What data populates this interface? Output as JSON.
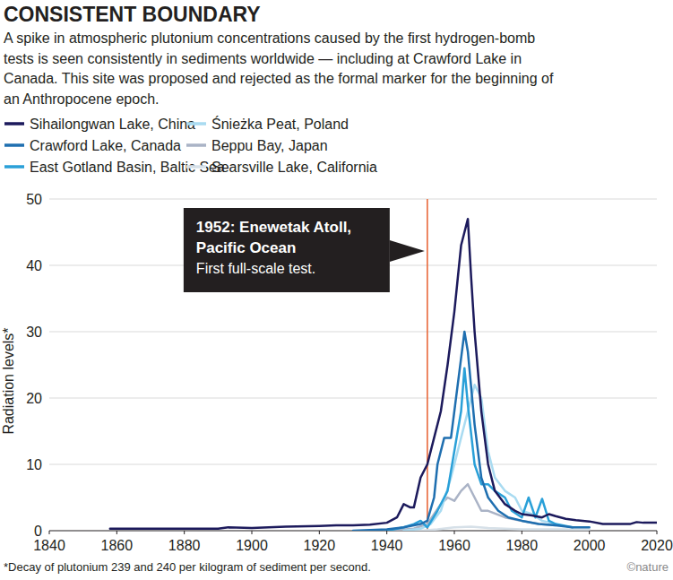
{
  "chart_data": {
    "type": "line",
    "title": "CONSISTENT BOUNDARY",
    "subtitle": [
      "A spike in atmospheric plutonium concentrations caused by the first hydrogen-bomb",
      "tests is seen consistently in sediments worldwide — including at Crawford Lake in",
      "Canada. This site was proposed and rejected as the formal marker for the beginning of",
      "an Anthropocene epoch."
    ],
    "ylabel": "Radiation levels*",
    "footnote": "*Decay of plutonium 239 and 240 per kilogram of sediment per second.",
    "credit": "©nature",
    "xlim": [
      1840,
      2020
    ],
    "ylim": [
      0,
      50
    ],
    "xticks": [
      1840,
      1860,
      1880,
      1900,
      1920,
      1940,
      1960,
      1980,
      2000,
      2020
    ],
    "yticks": [
      0,
      10,
      20,
      30,
      40,
      50
    ],
    "grid": true,
    "legend": "top",
    "annotations": [
      {
        "x": 1952,
        "lines": [
          "1952: Enewetak Atoll,",
          "Pacific Ocean"
        ],
        "text": "First full-scale test.",
        "color": "#e8683a"
      }
    ],
    "series": [
      {
        "name": "Sihailongwan Lake, China",
        "color": "#1c1a5c",
        "x": [
          1858,
          1870,
          1880,
          1890,
          1893,
          1900,
          1910,
          1920,
          1925,
          1930,
          1935,
          1940,
          1943,
          1945,
          1947,
          1948,
          1950,
          1952,
          1954,
          1956,
          1958,
          1960,
          1962,
          1963,
          1964,
          1965,
          1966,
          1968,
          1970,
          1972,
          1975,
          1978,
          1980,
          1983,
          1986,
          1988,
          1990,
          1993,
          1996,
          2000,
          2004,
          2008,
          2012,
          2014,
          2016,
          2020
        ],
        "values": [
          0.3,
          0.3,
          0.3,
          0.3,
          0.5,
          0.4,
          0.6,
          0.7,
          0.8,
          0.8,
          0.9,
          1.2,
          2,
          4,
          3.5,
          3.5,
          8,
          10,
          14,
          18,
          25,
          33,
          43,
          45,
          47,
          38,
          30,
          18,
          10,
          6,
          4,
          3,
          2.5,
          2.3,
          2,
          2.5,
          2.2,
          1.8,
          1.6,
          1.4,
          1,
          1,
          1,
          1.3,
          1.2,
          1.2
        ]
      },
      {
        "name": "Crawford Lake, Canada",
        "color": "#1f6fb0",
        "x": [
          1930,
          1940,
          1945,
          1948,
          1950,
          1952,
          1954,
          1955,
          1957,
          1959,
          1961,
          1963,
          1964,
          1966,
          1968,
          1970,
          1973,
          1976,
          1980,
          1985,
          1990,
          1995,
          2000
        ],
        "values": [
          0,
          0.2,
          0.5,
          0.8,
          1,
          1.5,
          5,
          10,
          14,
          14,
          22,
          30,
          27,
          16,
          8,
          5,
          3,
          2,
          1.5,
          1,
          0.8,
          0.5,
          0.5
        ]
      },
      {
        "name": "East Gotland Basin, Baltic Sea",
        "color": "#2aa0d8",
        "x": [
          1940,
          1945,
          1948,
          1950,
          1952,
          1955,
          1958,
          1960,
          1962,
          1963,
          1964,
          1966,
          1968,
          1970,
          1972,
          1975,
          1977,
          1980,
          1982,
          1984,
          1986,
          1988,
          1990,
          1995
        ],
        "values": [
          0,
          0.5,
          1,
          1.5,
          0.5,
          3,
          6,
          12,
          18,
          24.5,
          19,
          10,
          7,
          7,
          6,
          5,
          3,
          2,
          5,
          2,
          4.8,
          1.5,
          1,
          0.5
        ]
      },
      {
        "name": "Śnieżka Peat, Poland",
        "color": "#a9dbf1",
        "x": [
          1945,
          1950,
          1953,
          1956,
          1959,
          1962,
          1964,
          1966,
          1968,
          1970,
          1972,
          1975,
          1978,
          1980,
          1983,
          1986,
          1990
        ],
        "values": [
          0,
          0.3,
          1,
          3,
          8,
          14,
          18,
          22,
          20,
          12,
          8,
          6,
          5,
          3,
          2.5,
          1.5,
          1
        ]
      },
      {
        "name": "Beppu Bay, Japan",
        "color": "#aab3c6",
        "x": [
          1940,
          1948,
          1952,
          1954,
          1956,
          1958,
          1960,
          1962,
          1964,
          1966,
          1968,
          1970,
          1975,
          1980,
          1985,
          1990
        ],
        "values": [
          0,
          0.3,
          1,
          2.5,
          4,
          5,
          4.5,
          6,
          7,
          5,
          3,
          3,
          2,
          1.5,
          1,
          0.8
        ]
      },
      {
        "name": "Searsville Lake, California",
        "color": "#d6e0e8",
        "x": [
          1940,
          1950,
          1955,
          1960,
          1965,
          1970,
          1975,
          1980,
          1990,
          2000
        ],
        "values": [
          0,
          0,
          0.2,
          0.5,
          0.6,
          0.4,
          0.3,
          0.2,
          0.2,
          0.2
        ]
      }
    ]
  }
}
